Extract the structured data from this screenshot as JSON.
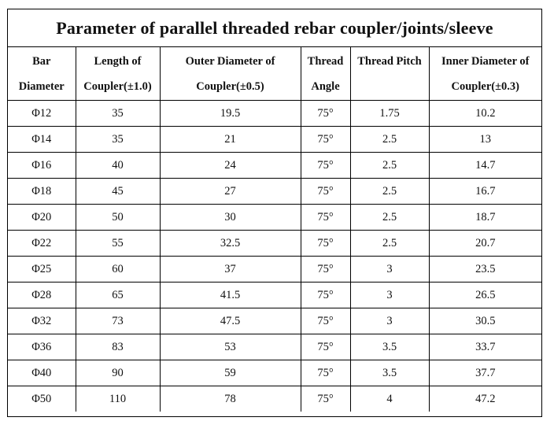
{
  "title": "Parameter of parallel threaded rebar coupler/joints/sleeve",
  "columns": [
    {
      "line1": "Bar",
      "line2": "Diameter"
    },
    {
      "line1": "Length of",
      "line2": "Coupler(±1.0)"
    },
    {
      "line1": "Outer Diameter of",
      "line2": "Coupler(±0.5)"
    },
    {
      "line1": "Thread",
      "line2": "Angle"
    },
    {
      "line1": "Thread Pitch",
      "line2": ""
    },
    {
      "line1": "Inner Diameter of",
      "line2": "Coupler(±0.3)"
    }
  ],
  "rows": [
    [
      "Φ12",
      "35",
      "19.5",
      "75°",
      "1.75",
      "10.2"
    ],
    [
      "Φ14",
      "35",
      "21",
      "75°",
      "2.5",
      "13"
    ],
    [
      "Φ16",
      "40",
      "24",
      "75°",
      "2.5",
      "14.7"
    ],
    [
      "Φ18",
      "45",
      "27",
      "75°",
      "2.5",
      "16.7"
    ],
    [
      "Φ20",
      "50",
      "30",
      "75°",
      "2.5",
      "18.7"
    ],
    [
      "Φ22",
      "55",
      "32.5",
      "75°",
      "2.5",
      "20.7"
    ],
    [
      "Φ25",
      "60",
      "37",
      "75°",
      "3",
      "23.5"
    ],
    [
      "Φ28",
      "65",
      "41.5",
      "75°",
      "3",
      "26.5"
    ],
    [
      "Φ32",
      "73",
      "47.5",
      "75°",
      "3",
      "30.5"
    ],
    [
      "Φ36",
      "83",
      "53",
      "75°",
      "3.5",
      "33.7"
    ],
    [
      "Φ40",
      "90",
      "59",
      "75°",
      "3.5",
      "37.7"
    ],
    [
      "Φ50",
      "110",
      "78",
      "75°",
      "4",
      "47.2"
    ]
  ]
}
